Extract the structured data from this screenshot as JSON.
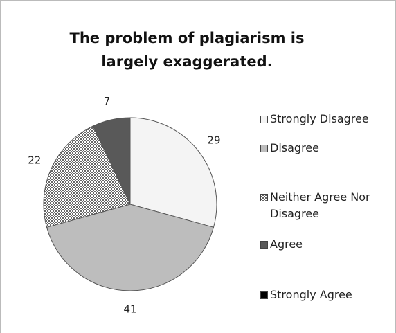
{
  "chart_data": {
    "type": "pie",
    "title": "The problem of plagiarism is largely exaggerated.",
    "series": [
      {
        "name": "Strongly Disagree",
        "color": "#f4f4f4",
        "values": [
          29
        ]
      },
      {
        "name": "Disagree",
        "color": "#bdbdbd",
        "values": [
          41
        ]
      },
      {
        "name": "Neither Agree Nor Disagree",
        "color": "#8c8c8c",
        "pattern": "checker",
        "values": [
          22
        ]
      },
      {
        "name": "Agree",
        "color": "#595959",
        "values": [
          7
        ]
      },
      {
        "name": "Strongly Agree",
        "color": "#000000",
        "values": [
          0
        ]
      }
    ],
    "legend": "right"
  }
}
